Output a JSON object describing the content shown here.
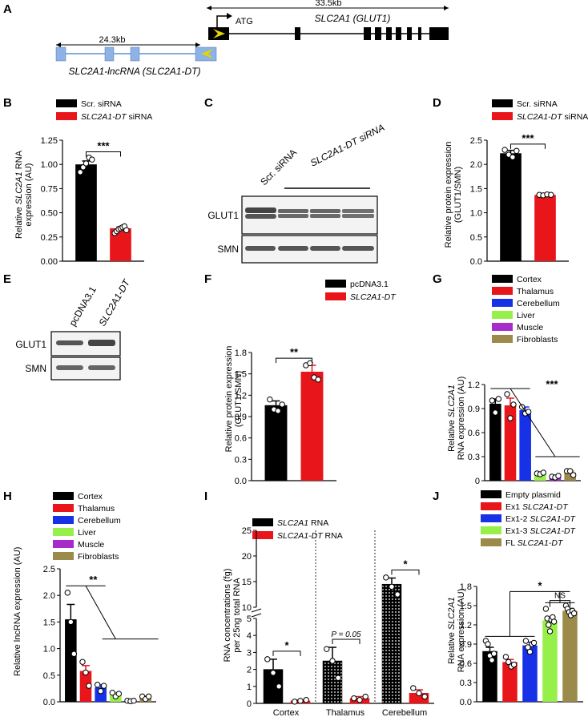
{
  "colors": {
    "black": "#000000",
    "red": "#e8161b",
    "blue": "#1631e6",
    "green": "#97f04a",
    "purple": "#a72bc8",
    "olive": "#9b8b4a"
  },
  "panelA": {
    "label": "A",
    "gene_len": "33.5kb",
    "lnc_len": "24.3kb",
    "atg": "ATG",
    "gene_name": "SLC2A1 (GLUT1)",
    "lnc_name": "SLC2A1-lncRNA (SLC2A1-DT)"
  },
  "panelB": {
    "label": "B",
    "legend": [
      "Scr. siRNA",
      " siRNA"
    ],
    "legend_it": [
      "",
      "SLC2A1-DT"
    ],
    "ylabel_pre": "Relative ",
    "ylabel_it": "SLC2A1",
    "ylabel_post": " RNA",
    "ylabel2": "expression (AU)",
    "sig": "***"
  },
  "panelC": {
    "label": "C",
    "lane1": "Scr. siRNA",
    "lane2": "SLC2A1-DT siRNA",
    "bands": [
      "GLUT1",
      "SMN"
    ]
  },
  "panelD": {
    "label": "D",
    "legend": [
      "Scr. siRNA",
      " siRNA"
    ],
    "legend_it": [
      "",
      "SLC2A1-DT"
    ],
    "ylabel": "Relative protein expression",
    "ylabel2": "(GLUT1/SMN)",
    "sig": "***"
  },
  "panelE": {
    "label": "E",
    "lane1": "pcDNA3.1",
    "lane2": "SLC2A1-DT",
    "bands": [
      "GLUT1",
      "SMN"
    ]
  },
  "panelF": {
    "label": "F",
    "legend": [
      "pcDNA3.1",
      "SLC2A1-DT"
    ],
    "ylabel": "Relative protein expression",
    "ylabel2": "(GLUT1/SMN)",
    "sig": "**"
  },
  "panelG": {
    "label": "G",
    "legend": [
      "Cortex",
      "Thalamus",
      "Cerebellum",
      "Liver",
      "Muscle",
      "Fibroblasts"
    ],
    "ylabel_pre": "Relative ",
    "ylabel_it": "SLC2A1",
    "ylabel2": "RNA expression (AU)",
    "sig": "***"
  },
  "panelH": {
    "label": "H",
    "legend": [
      "Cortex",
      "Thalamus",
      "Cerebellum",
      "Liver",
      "Muscle",
      "Fibroblasts"
    ],
    "ylabel": "Relative lncRNA expression (AU)",
    "sig": "**"
  },
  "panelI": {
    "label": "I",
    "legend": [
      " RNA",
      " RNA"
    ],
    "legend_it": [
      "SLC2A1",
      "SLC2A1-DT"
    ],
    "ylabel": "RNA concentrations (fg)",
    "ylabel2": "per 25ng total RNA",
    "groups": [
      "Cortex",
      "Thalamus",
      "Cerebellum"
    ],
    "sig": [
      "*",
      "P = 0.05",
      "*"
    ]
  },
  "panelJ": {
    "label": "J",
    "legend": [
      "Empty plasmid",
      "Ex1 ",
      "Ex1-2 ",
      "Ex1-3 ",
      "FL "
    ],
    "legend_it": [
      "",
      "SLC2A1-DT",
      "SLC2A1-DT",
      "SLC2A1-DT",
      "SLC2A1-DT"
    ],
    "ylabel_pre": "Relative ",
    "ylabel_it": "SLC2A1",
    "ylabel2": "RNA expression (AU)",
    "sig": [
      "*",
      "NS"
    ]
  },
  "chart_data": [
    {
      "panel": "B",
      "type": "bar",
      "categories": [
        "Scr. siRNA",
        "SLC2A1-DT siRNA"
      ],
      "values": [
        1.0,
        0.34
      ],
      "errors": [
        0.035,
        0.015
      ],
      "points": [
        [
          0.92,
          0.97,
          1.01,
          1.07,
          1.05
        ],
        [
          0.29,
          0.31,
          0.33,
          0.34,
          0.35,
          0.36,
          0.32
        ]
      ],
      "colors": [
        "#000000",
        "#e8161b"
      ],
      "ylim": [
        0,
        1.25
      ],
      "yticks": [
        "0.00",
        "0.25",
        "0.50",
        "0.75",
        "1.00",
        "1.25"
      ],
      "sig": "***"
    },
    {
      "panel": "D",
      "type": "bar",
      "categories": [
        "Scr. siRNA",
        "SLC2A1-DT siRNA"
      ],
      "values": [
        2.23,
        1.37
      ],
      "errors": [
        0.06,
        0.02
      ],
      "points": [
        [
          2.3,
          2.2,
          2.15,
          2.28
        ],
        [
          1.37,
          1.36,
          1.38,
          1.37
        ]
      ],
      "colors": [
        "#000000",
        "#e8161b"
      ],
      "ylim": [
        0,
        2.5
      ],
      "yticks": [
        "0.0",
        "0.5",
        "1.0",
        "1.5",
        "2.0",
        "2.5"
      ],
      "sig": "***"
    },
    {
      "panel": "F",
      "type": "bar",
      "categories": [
        "pcDNA3.1",
        "SLC2A1-DT"
      ],
      "values": [
        1.06,
        1.53
      ],
      "errors": [
        0.06,
        0.09
      ],
      "points": [
        [
          1.14,
          1.0,
          0.98,
          1.07
        ],
        [
          1.62,
          1.65,
          1.45,
          1.42
        ]
      ],
      "colors": [
        "#000000",
        "#e8161b"
      ],
      "ylim": [
        0,
        1.8
      ],
      "yticks": [
        "0.0",
        "0.3",
        "0.6",
        "0.9",
        "1.2",
        "1.5",
        "1.8"
      ],
      "sig": "**"
    },
    {
      "panel": "G",
      "type": "bar",
      "categories": [
        "Cortex",
        "Thalamus",
        "Cerebellum",
        "Liver",
        "Muscle",
        "Fibroblasts"
      ],
      "values": [
        0.96,
        0.94,
        0.88,
        0.09,
        0.05,
        0.1
      ],
      "errors": [
        0.06,
        0.09,
        0.04,
        0.01,
        0.01,
        0.02
      ],
      "points": [
        [
          1.0,
          0.85,
          1.02
        ],
        [
          1.08,
          0.78,
          0.95
        ],
        [
          0.92,
          0.84,
          0.86
        ],
        [
          0.09,
          0.08,
          0.1
        ],
        [
          0.05,
          0.04,
          0.06
        ],
        [
          0.12,
          0.12,
          0.07
        ]
      ],
      "colors": [
        "#000000",
        "#e8161b",
        "#1631e6",
        "#97f04a",
        "#a72bc8",
        "#9b8b4a"
      ],
      "ylim": [
        0,
        1.2
      ],
      "yticks": [
        "0",
        "0.3",
        "0.6",
        "0.9",
        "1.2"
      ],
      "sig": "***"
    },
    {
      "panel": "H",
      "type": "bar",
      "categories": [
        "Cortex",
        "Thalamus",
        "Cerebellum",
        "Liver",
        "Muscle",
        "Fibroblasts"
      ],
      "values": [
        1.55,
        0.58,
        0.27,
        0.14,
        0.02,
        0.08
      ],
      "errors": [
        0.28,
        0.1,
        0.05,
        0.03,
        0.01,
        0.03
      ],
      "points": [
        [
          2.05,
          1.5,
          0.9
        ],
        [
          0.75,
          0.55,
          0.3
        ],
        [
          0.32,
          0.2,
          0.3
        ],
        [
          0.17,
          0.1,
          0.15
        ],
        [
          0.02,
          0.01,
          0.02
        ],
        [
          0.1,
          0.05,
          0.1
        ]
      ],
      "colors": [
        "#000000",
        "#e8161b",
        "#1631e6",
        "#97f04a",
        "#a72bc8",
        "#9b8b4a"
      ],
      "ylim": [
        0,
        2.5
      ],
      "yticks": [
        "0.0",
        "0.5",
        "1.0",
        "1.5",
        "2.0",
        "2.5"
      ],
      "sig": "**"
    },
    {
      "panel": "I",
      "type": "bar",
      "categories": [
        "Cortex",
        "Thalamus",
        "Cerebellum"
      ],
      "series": [
        {
          "name": "SLC2A1 RNA",
          "values": [
            2.0,
            2.5,
            14.5
          ],
          "errors": [
            0.6,
            0.8,
            1.2
          ]
        },
        {
          "name": "SLC2A1-DT RNA",
          "values": [
            0.15,
            0.3,
            0.6
          ],
          "errors": [
            0.05,
            0.1,
            0.2
          ]
        }
      ],
      "points": [
        [
          [
            2.6,
            1.8,
            1.0
          ],
          [
            0.1,
            0.15,
            0.2
          ]
        ],
        [
          [
            3.2,
            2.5,
            1.5
          ],
          [
            0.3,
            0.2,
            0.4
          ]
        ],
        [
          [
            15.8,
            14.0,
            12.5
          ],
          [
            0.9,
            0.6,
            0.4
          ]
        ]
      ],
      "colors": [
        "#000000",
        "#e8161b"
      ],
      "ylim": [
        0,
        25
      ],
      "yticks_low": [
        "0",
        "1",
        "2",
        "3",
        "4",
        "5"
      ],
      "yticks_high": [
        "10",
        "15",
        "20",
        "25"
      ],
      "axis_break": [
        5,
        10
      ],
      "sig": [
        "*",
        "P = 0.05",
        "*"
      ]
    },
    {
      "panel": "J",
      "type": "bar",
      "categories": [
        "Empty plasmid",
        "Ex1 SLC2A1-DT",
        "Ex1-2 SLC2A1-DT",
        "Ex1-3 SLC2A1-DT",
        "FL SLC2A1-DT"
      ],
      "values": [
        0.79,
        0.62,
        0.88,
        1.27,
        1.42
      ],
      "errors": [
        0.06,
        0.04,
        0.05,
        0.05,
        0.04
      ],
      "points": [
        [
          0.95,
          0.9,
          0.72,
          0.65,
          0.75
        ],
        [
          0.7,
          0.62,
          0.55,
          0.58
        ],
        [
          0.95,
          0.85,
          0.78,
          0.9,
          0.92
        ],
        [
          1.45,
          1.3,
          1.2,
          1.1,
          1.28,
          1.32,
          1.25
        ],
        [
          1.5,
          1.45,
          1.4,
          1.35,
          1.42,
          1.38
        ]
      ],
      "colors": [
        "#000000",
        "#e8161b",
        "#1631e6",
        "#97f04a",
        "#9b8b4a"
      ],
      "ylim": [
        0,
        1.8
      ],
      "yticks": [
        "0.0",
        "0.3",
        "0.6",
        "0.9",
        "1.2",
        "1.5",
        "1.8"
      ],
      "sig": [
        "*",
        "NS"
      ]
    }
  ]
}
